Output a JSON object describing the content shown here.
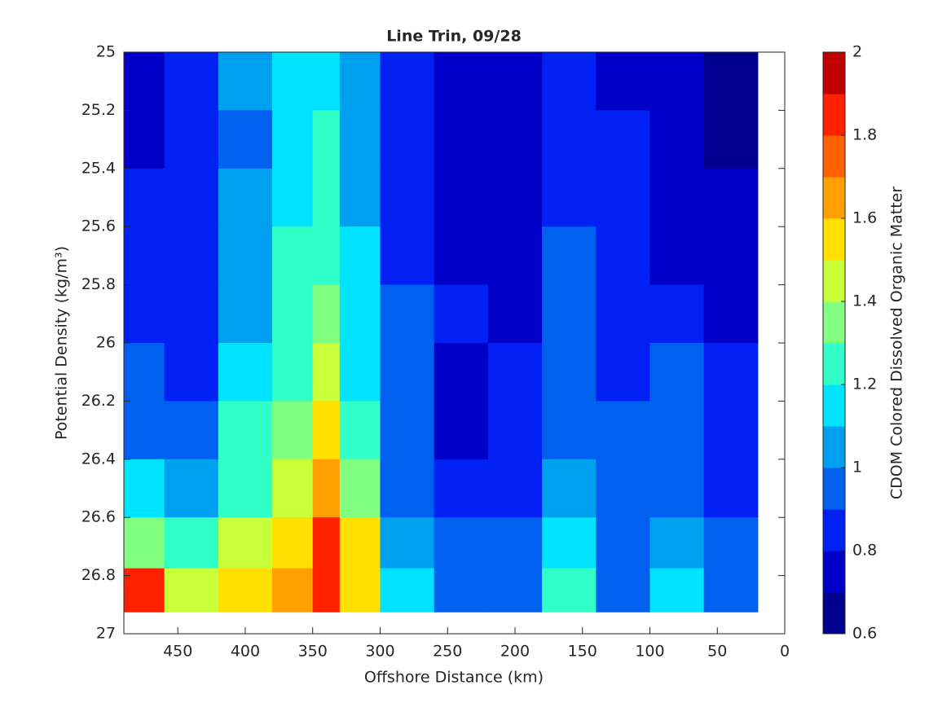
{
  "chart_data": {
    "type": "contourf",
    "title": "Line Trin, 09/28",
    "x_label": "Offshore Distance (km)",
    "y_label": "Potential Density (kg/m³)",
    "colorbar_label": "CDOM Colored Dissolved Organic Matter",
    "x": [
      480,
      440,
      400,
      360,
      340,
      320,
      280,
      240,
      200,
      160,
      120,
      80,
      40
    ],
    "y": [
      25.1,
      25.3,
      25.5,
      25.7,
      25.9,
      26.1,
      26.3,
      26.5,
      26.7,
      26.85
    ],
    "z": [
      [
        0.75,
        0.85,
        1.05,
        1.15,
        1.15,
        1.05,
        0.85,
        0.75,
        0.75,
        0.85,
        0.75,
        0.75,
        0.65
      ],
      [
        0.75,
        0.85,
        0.95,
        1.15,
        1.25,
        1.05,
        0.85,
        0.75,
        0.75,
        0.85,
        0.8,
        0.75,
        0.65
      ],
      [
        0.85,
        0.85,
        1.05,
        1.15,
        1.25,
        1.05,
        0.85,
        0.75,
        0.75,
        0.85,
        0.85,
        0.75,
        0.7
      ],
      [
        0.85,
        0.8,
        1.05,
        1.25,
        1.25,
        1.15,
        0.85,
        0.75,
        0.75,
        0.95,
        0.85,
        0.75,
        0.75
      ],
      [
        0.85,
        0.85,
        1.05,
        1.25,
        1.35,
        1.15,
        0.95,
        0.85,
        0.75,
        0.95,
        0.85,
        0.85,
        0.75
      ],
      [
        0.95,
        0.85,
        1.15,
        1.25,
        1.45,
        1.15,
        0.95,
        0.75,
        0.85,
        0.95,
        0.85,
        0.95,
        0.85
      ],
      [
        0.95,
        0.95,
        1.25,
        1.35,
        1.55,
        1.25,
        0.95,
        0.75,
        0.85,
        0.95,
        0.95,
        0.95,
        0.85
      ],
      [
        1.15,
        1.05,
        1.25,
        1.45,
        1.65,
        1.35,
        0.95,
        0.85,
        0.85,
        1.05,
        0.95,
        0.95,
        0.85
      ],
      [
        1.35,
        1.25,
        1.45,
        1.55,
        1.85,
        1.55,
        1.05,
        0.95,
        0.95,
        1.15,
        0.95,
        1.05,
        0.95
      ],
      [
        1.85,
        1.45,
        1.55,
        1.65,
        1.85,
        1.55,
        1.15,
        0.95,
        0.95,
        1.25,
        0.95,
        1.15,
        0.95
      ]
    ],
    "levels": [
      0.6,
      0.7,
      0.8,
      0.9,
      1.0,
      1.1,
      1.2,
      1.3,
      1.4,
      1.5,
      1.6,
      1.7,
      1.8,
      1.9,
      2.0
    ],
    "colors": [
      "#00008f",
      "#0000c8",
      "#0020f4",
      "#0060f0",
      "#00a0f0",
      "#00e4ff",
      "#30ffc8",
      "#80ff80",
      "#c8ff38",
      "#ffe000",
      "#ffa000",
      "#ff6000",
      "#ff2000",
      "#c00000"
    ],
    "xlim": [
      490,
      0
    ],
    "xticks": [
      450,
      400,
      350,
      300,
      250,
      200,
      150,
      100,
      50,
      0
    ],
    "ylim": [
      25,
      27
    ],
    "yticks": [
      25,
      25.2,
      25.4,
      25.6,
      25.8,
      26,
      26.2,
      26.4,
      26.6,
      26.8,
      27
    ],
    "clim": [
      0.6,
      2
    ],
    "cticks": [
      0.6,
      0.8,
      1,
      1.2,
      1.4,
      1.6,
      1.8,
      2
    ]
  }
}
